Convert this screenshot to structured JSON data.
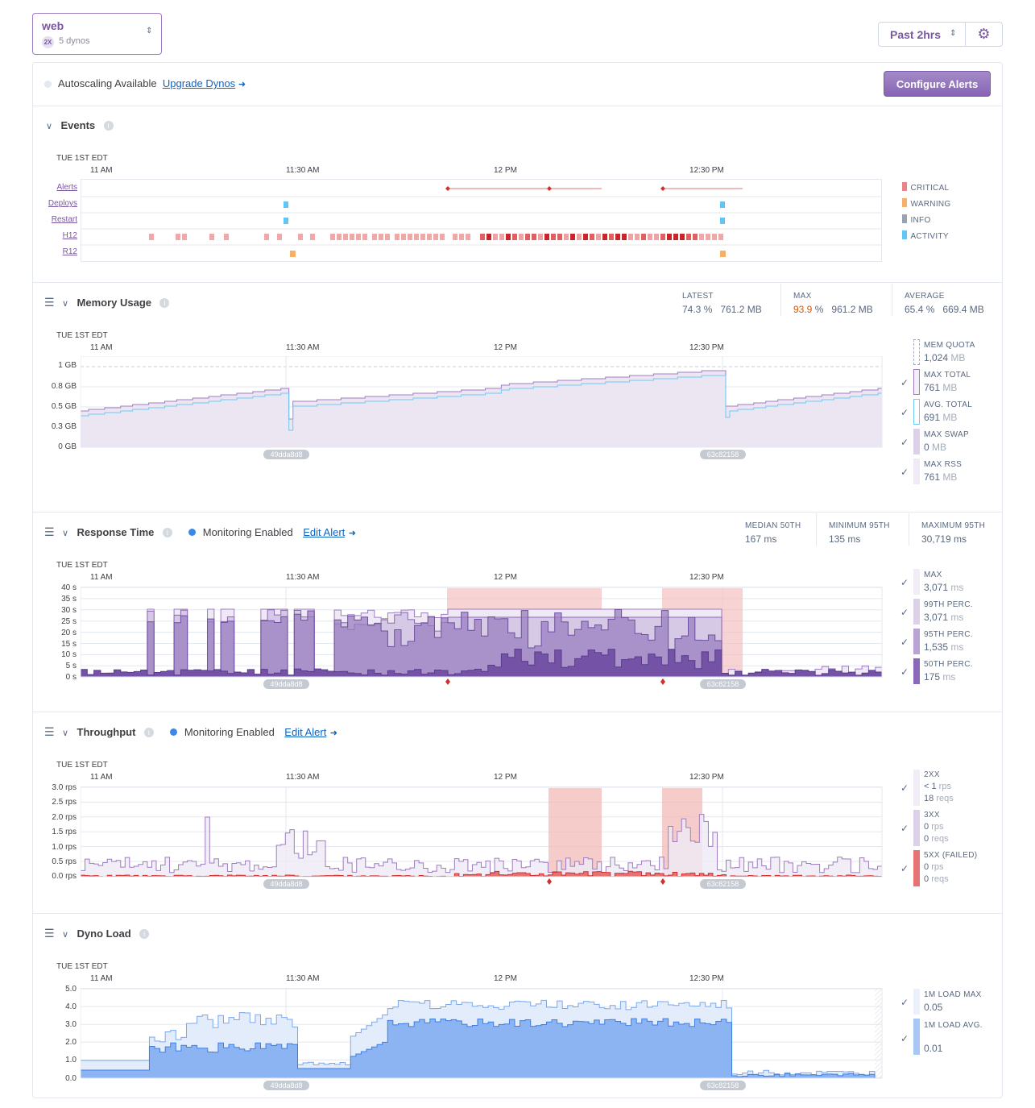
{
  "process": {
    "name": "web",
    "size": "2X",
    "dynos": "5 dynos"
  },
  "time_range": "Past 2hrs",
  "autoscaling": {
    "text": "Autoscaling Available",
    "link": "Upgrade Dynos"
  },
  "configure_alerts": "Configure Alerts",
  "timezone": "TUE 1ST EDT",
  "time_ticks": [
    "11 AM",
    "11:30 AM",
    "12 PM",
    "12:30 PM"
  ],
  "deploy_markers": [
    "49dda8d8",
    "63c82158"
  ],
  "events": {
    "title": "Events",
    "rows": [
      "Alerts",
      "Deploys",
      "Restart",
      "H12",
      "R12"
    ],
    "legend": [
      "CRITICAL",
      "WARNING",
      "INFO",
      "ACTIVITY"
    ],
    "colors": {
      "critical": "#e8858a",
      "warning": "#f7b069",
      "info": "#9ba3b2",
      "activity": "#5fc6f5"
    }
  },
  "memory": {
    "title": "Memory Usage",
    "stats": [
      {
        "label": "LATEST",
        "pct": "74.3",
        "pct_unit": "%",
        "val": "761.2",
        "unit": "MB"
      },
      {
        "label": "MAX",
        "pct": "93.9",
        "pct_unit": "%",
        "val": "961.2",
        "unit": "MB"
      },
      {
        "label": "AVERAGE",
        "pct": "65.4",
        "pct_unit": "%",
        "val": "669.4",
        "unit": "MB"
      }
    ],
    "yticks": [
      "1 GB",
      "0.8 GB",
      "0.5 GB",
      "0.3 GB",
      "0 GB"
    ],
    "legend": [
      {
        "label": "MEM QUOTA",
        "val": "1,024",
        "unit": "MB"
      },
      {
        "label": "MAX TOTAL",
        "val": "761",
        "unit": "MB"
      },
      {
        "label": "AVG. TOTAL",
        "val": "691",
        "unit": "MB"
      },
      {
        "label": "MAX SWAP",
        "val": "0",
        "unit": "MB"
      },
      {
        "label": "MAX RSS",
        "val": "761",
        "unit": "MB"
      }
    ]
  },
  "response": {
    "title": "Response Time",
    "monitoring": "Monitoring Enabled",
    "edit": "Edit Alert",
    "stats": [
      {
        "label": "MEDIAN 50TH",
        "val": "167",
        "unit": "ms"
      },
      {
        "label": "MINIMUM 95TH",
        "val": "135",
        "unit": "ms"
      },
      {
        "label": "MAXIMUM 95TH",
        "val": "30,719",
        "unit": "ms"
      }
    ],
    "yticks": [
      "40 s",
      "35 s",
      "30 s",
      "25 s",
      "20 s",
      "15 s",
      "10 s",
      "5 s",
      "0 s"
    ],
    "legend": [
      {
        "label": "MAX",
        "val": "3,071",
        "unit": "ms"
      },
      {
        "label": "99TH PERC.",
        "val": "3,071",
        "unit": "ms"
      },
      {
        "label": "95TH PERC.",
        "val": "1,535",
        "unit": "ms"
      },
      {
        "label": "50TH PERC.",
        "val": "175",
        "unit": "ms"
      }
    ]
  },
  "throughput": {
    "title": "Throughput",
    "monitoring": "Monitoring Enabled",
    "edit": "Edit Alert",
    "yticks": [
      "3.0 rps",
      "2.5 rps",
      "2.0 rps",
      "1.5 rps",
      "1.0 rps",
      "0.5 rps",
      "0.0 rps"
    ],
    "legend": [
      {
        "label": "2XX",
        "rps": "< 1",
        "rps_unit": "rps",
        "reqs": "18",
        "reqs_unit": "reqs"
      },
      {
        "label": "3XX",
        "rps": "0",
        "rps_unit": "rps",
        "reqs": "0",
        "reqs_unit": "reqs"
      },
      {
        "label": "5XX (FAILED)",
        "rps": "0",
        "rps_unit": "rps",
        "reqs": "0",
        "reqs_unit": "reqs"
      }
    ]
  },
  "load": {
    "title": "Dyno Load",
    "yticks": [
      "5.0",
      "4.0",
      "3.0",
      "2.0",
      "1.0",
      "0.0"
    ],
    "legend": [
      {
        "label": "1M LOAD MAX",
        "val": "0.05"
      },
      {
        "label": "1M LOAD AVG.",
        "val": "0.01"
      }
    ]
  }
}
